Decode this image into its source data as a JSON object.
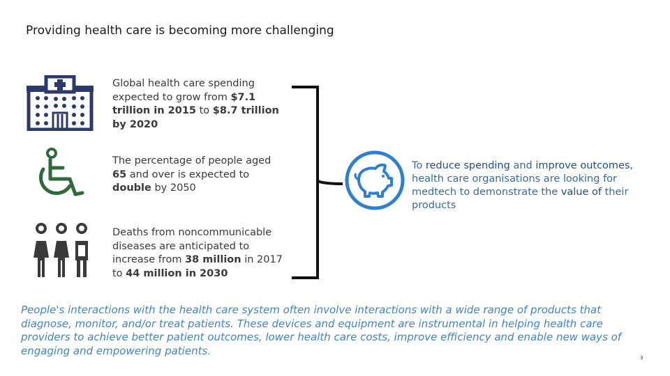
{
  "title": "Providing health care is becoming more challenging",
  "stats": [
    {
      "icon": "hospital-icon",
      "parts": [
        {
          "t": "Global health care spending expected to grow from "
        },
        {
          "t": "$7.1 trillion in 2015",
          "b": true
        },
        {
          "t": " to "
        },
        {
          "t": "$8.7 trillion by 2020",
          "b": true
        }
      ]
    },
    {
      "icon": "wheelchair-icon",
      "parts": [
        {
          "t": "The percentage of people aged "
        },
        {
          "t": "65",
          "b": true
        },
        {
          "t": " and over is expected to "
        },
        {
          "t": "double",
          "b": true
        },
        {
          "t": " by 2050"
        }
      ]
    },
    {
      "icon": "people-icon",
      "parts": [
        {
          "t": "Deaths from noncommunicable diseases are anticipated to increase from "
        },
        {
          "t": "38 million",
          "b": true
        },
        {
          "t": " in 2017 to "
        },
        {
          "t": "44 million in 2030",
          "b": true
        }
      ]
    }
  ],
  "conclusion": {
    "icon": "piggy-bank-icon",
    "parts": [
      {
        "t": "To "
      },
      {
        "t": "reduce spending",
        "h": true
      },
      {
        "t": " and "
      },
      {
        "t": "improve outcomes,",
        "h": true
      },
      {
        "t": " health care organisations are looking for medtech to demonstrate the "
      },
      {
        "t": "value of",
        "h": true
      },
      {
        "t": " their products"
      }
    ]
  },
  "footer": "People's interactions with the health care system often involve interactions with a wide range of products that diagnose, monitor, and/or treat patients. These devices and equipment are instrumental in helping health care providers to achieve better patient outcomes, lower health care costs, improve efficiency and enable new ways of engaging and empowering patients.",
  "page_number": "3",
  "colors": {
    "navy": "#2b3a6b",
    "green": "#2e6b3a",
    "dark_gray": "#3a3a3a",
    "blue": "#2e7fd0",
    "footer_blue": "#3f84c6"
  }
}
